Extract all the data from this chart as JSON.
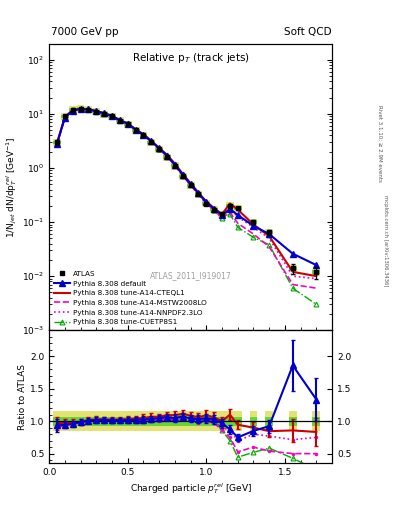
{
  "title_top_left": "7000 GeV pp",
  "title_top_right": "Soft QCD",
  "title_main": "Relative p$_{T}$ (track jets)",
  "xlabel": "Charged particle $p_{T}^{rel}$ [GeV]",
  "ylabel_main": "1/N$_{jet}$ dN/dp$_{T}^{rel}$ [GeV$^{-1}$]",
  "ylabel_ratio": "Ratio to ATLAS",
  "right_label_top": "Rivet 3.1.10; ≥ 2.9M events",
  "right_label_bot": "mcplots.cern.ch [arXiv:1306.3436]",
  "watermark": "ATLAS_2011_I919017",
  "xmin": 0.0,
  "xmax": 1.8,
  "atlas_x": [
    0.05,
    0.1,
    0.15,
    0.2,
    0.25,
    0.3,
    0.35,
    0.4,
    0.45,
    0.5,
    0.55,
    0.6,
    0.65,
    0.7,
    0.75,
    0.8,
    0.85,
    0.9,
    0.95,
    1.0,
    1.05,
    1.1,
    1.15,
    1.2,
    1.3,
    1.4,
    1.55,
    1.7
  ],
  "atlas_y": [
    3.0,
    9.0,
    12.0,
    12.5,
    12.0,
    11.0,
    10.0,
    9.0,
    7.5,
    6.5,
    5.0,
    4.0,
    3.0,
    2.2,
    1.6,
    1.1,
    0.7,
    0.48,
    0.33,
    0.22,
    0.17,
    0.14,
    0.2,
    0.18,
    0.1,
    0.065,
    0.014,
    0.012
  ],
  "atlas_yerr": [
    0.3,
    0.5,
    0.6,
    0.6,
    0.5,
    0.5,
    0.4,
    0.4,
    0.3,
    0.3,
    0.2,
    0.2,
    0.15,
    0.1,
    0.08,
    0.06,
    0.04,
    0.025,
    0.02,
    0.015,
    0.012,
    0.01,
    0.015,
    0.013,
    0.009,
    0.007,
    0.003,
    0.003
  ],
  "py_default_x": [
    0.05,
    0.1,
    0.15,
    0.2,
    0.25,
    0.3,
    0.35,
    0.4,
    0.45,
    0.5,
    0.55,
    0.6,
    0.65,
    0.7,
    0.75,
    0.8,
    0.85,
    0.9,
    0.95,
    1.0,
    1.05,
    1.1,
    1.15,
    1.2,
    1.3,
    1.4,
    1.55,
    1.7
  ],
  "py_default_y": [
    2.8,
    8.5,
    11.5,
    12.3,
    12.1,
    11.2,
    10.2,
    9.1,
    7.6,
    6.6,
    5.1,
    4.1,
    3.1,
    2.3,
    1.7,
    1.15,
    0.75,
    0.5,
    0.34,
    0.23,
    0.175,
    0.135,
    0.175,
    0.135,
    0.085,
    0.06,
    0.026,
    0.016
  ],
  "py_cteq_x": [
    0.05,
    0.1,
    0.15,
    0.2,
    0.25,
    0.3,
    0.35,
    0.4,
    0.45,
    0.5,
    0.55,
    0.6,
    0.65,
    0.7,
    0.75,
    0.8,
    0.85,
    0.9,
    0.95,
    1.0,
    1.05,
    1.1,
    1.15,
    1.2,
    1.3,
    1.4,
    1.55,
    1.7
  ],
  "py_cteq_y": [
    2.9,
    8.8,
    11.8,
    12.4,
    12.2,
    11.3,
    10.3,
    9.2,
    7.7,
    6.7,
    5.2,
    4.2,
    3.2,
    2.35,
    1.75,
    1.2,
    0.78,
    0.52,
    0.35,
    0.24,
    0.18,
    0.14,
    0.22,
    0.17,
    0.09,
    0.055,
    0.012,
    0.01
  ],
  "py_mstw_x": [
    0.05,
    0.1,
    0.15,
    0.2,
    0.25,
    0.3,
    0.35,
    0.4,
    0.45,
    0.5,
    0.55,
    0.6,
    0.65,
    0.7,
    0.75,
    0.8,
    0.85,
    0.9,
    0.95,
    1.0,
    1.05,
    1.1,
    1.15,
    1.2,
    1.3,
    1.4,
    1.55,
    1.7
  ],
  "py_mstw_y": [
    2.7,
    8.4,
    11.4,
    12.2,
    12.0,
    11.1,
    10.1,
    9.0,
    7.5,
    6.5,
    5.0,
    4.0,
    3.0,
    2.2,
    1.65,
    1.1,
    0.72,
    0.48,
    0.32,
    0.22,
    0.165,
    0.12,
    0.15,
    0.095,
    0.06,
    0.035,
    0.007,
    0.006
  ],
  "py_nnpdf_x": [
    0.05,
    0.1,
    0.15,
    0.2,
    0.25,
    0.3,
    0.35,
    0.4,
    0.45,
    0.5,
    0.55,
    0.6,
    0.65,
    0.7,
    0.75,
    0.8,
    0.85,
    0.9,
    0.95,
    1.0,
    1.05,
    1.1,
    1.15,
    1.2,
    1.3,
    1.4,
    1.55,
    1.7
  ],
  "py_nnpdf_y": [
    2.8,
    8.6,
    11.6,
    12.3,
    12.1,
    11.2,
    10.2,
    9.1,
    7.6,
    6.6,
    5.05,
    4.05,
    3.05,
    2.25,
    1.68,
    1.12,
    0.73,
    0.49,
    0.33,
    0.225,
    0.17,
    0.125,
    0.175,
    0.125,
    0.08,
    0.05,
    0.01,
    0.009
  ],
  "py_cuet_x": [
    0.05,
    0.1,
    0.15,
    0.2,
    0.25,
    0.3,
    0.35,
    0.4,
    0.45,
    0.5,
    0.55,
    0.6,
    0.65,
    0.7,
    0.75,
    0.8,
    0.85,
    0.9,
    0.95,
    1.0,
    1.05,
    1.1,
    1.15,
    1.2,
    1.3,
    1.4,
    1.55,
    1.7
  ],
  "py_cuet_y": [
    2.85,
    8.7,
    11.7,
    12.35,
    12.15,
    11.25,
    10.25,
    9.15,
    7.65,
    6.65,
    5.1,
    4.1,
    3.1,
    2.28,
    1.72,
    1.17,
    0.76,
    0.51,
    0.34,
    0.23,
    0.17,
    0.12,
    0.14,
    0.08,
    0.052,
    0.038,
    0.006,
    0.003
  ],
  "color_atlas": "#000000",
  "color_default": "#0000cc",
  "color_cteq": "#cc0000",
  "color_mstw": "#ff00bb",
  "color_nnpdf": "#dd00dd",
  "color_cuet": "#00aa00",
  "band_inner_color": "#00cc00",
  "band_outer_color": "#cccc00",
  "ylim_main": [
    0.001,
    200
  ],
  "ylim_ratio": [
    0.35,
    2.4
  ]
}
